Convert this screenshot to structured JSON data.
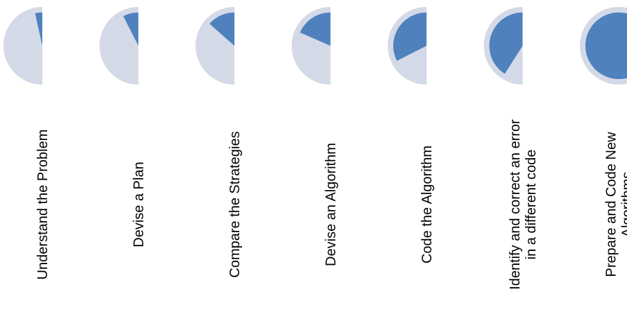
{
  "colors": {
    "track": "#d4d9e8",
    "progress": "#4f81bd",
    "text": "#000000"
  },
  "steps": [
    {
      "lines": [
        "Understand the Problem"
      ],
      "fill": 0.07
    },
    {
      "lines": [
        "Devise a Plan"
      ],
      "fill": 0.15
    },
    {
      "lines": [
        "Compare the Strategies"
      ],
      "fill": 0.27
    },
    {
      "lines": [
        "Devise an Algorithm"
      ],
      "fill": 0.37
    },
    {
      "lines": [
        "Code the Algorithm"
      ],
      "fill": 0.65
    },
    {
      "lines": [
        "Identify and correct an error",
        "in a different code"
      ],
      "fill": 0.82
    },
    {
      "lines": [
        "Prepare and Code New",
        "Algorithms"
      ],
      "fill": 1.0
    }
  ]
}
